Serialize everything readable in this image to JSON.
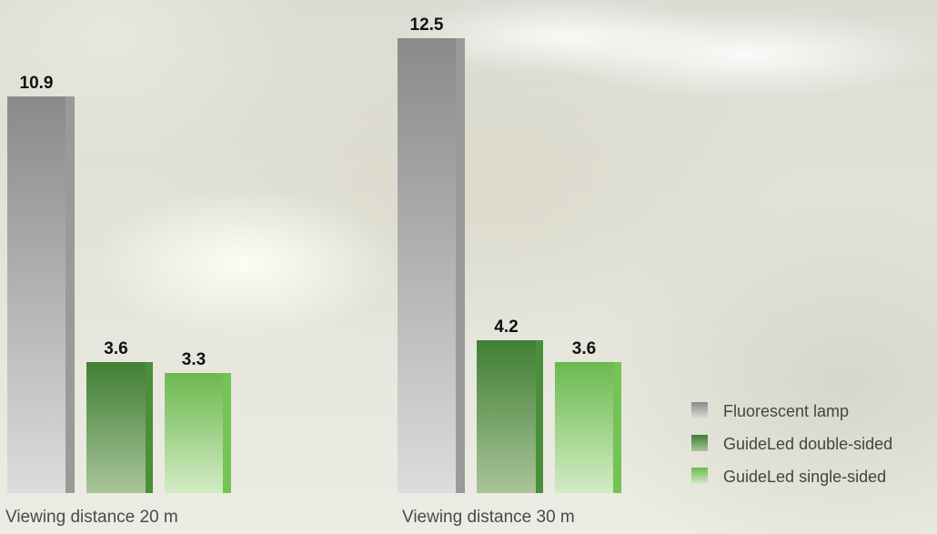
{
  "chart_data": {
    "type": "bar",
    "categories": [
      "Viewing distance 20 m",
      "Viewing distance 30 m"
    ],
    "series": [
      {
        "name": "Fluorescent lamp",
        "values": [
          10.9,
          12.5
        ],
        "value_labels": [
          "10.9",
          "12.5"
        ],
        "color": "#8c8c8c"
      },
      {
        "name": "GuideLed double-sided",
        "values": [
          3.6,
          4.2
        ],
        "value_labels": [
          "3.6",
          "4.2"
        ],
        "color": "#4e8a3e"
      },
      {
        "name": "GuideLed single-sided",
        "values": [
          3.3,
          3.6
        ],
        "value_labels": [
          "3.3",
          "3.6"
        ],
        "color": "#8cc870"
      }
    ],
    "title": "",
    "xlabel": "",
    "ylabel": "",
    "ylim": [
      0,
      12.5
    ],
    "grid": false,
    "legend_position": "bottom-right"
  }
}
